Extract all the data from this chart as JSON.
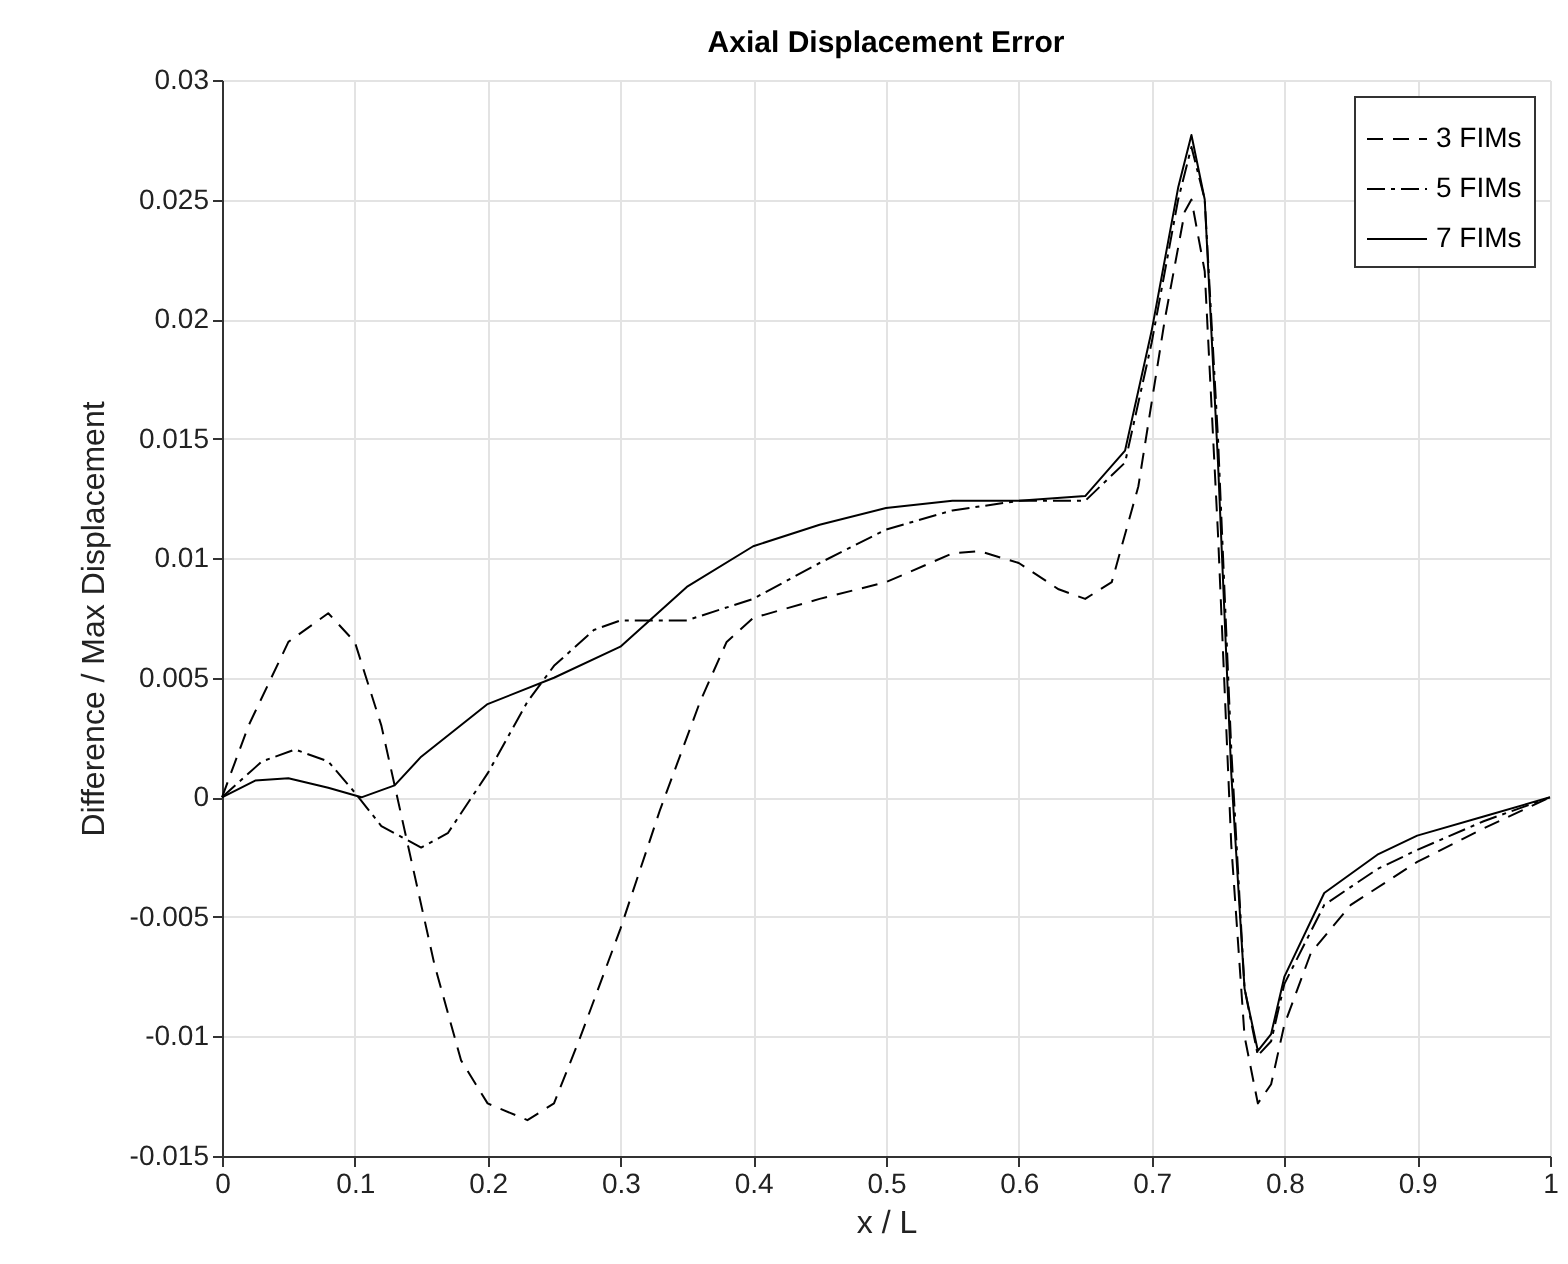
{
  "chart_data": {
    "type": "line",
    "title": "Axial Displacement Error",
    "xlabel": "x / L",
    "ylabel": "Difference / Max Displacement",
    "xlim": [
      0,
      1
    ],
    "xticks": [
      0,
      0.1,
      0.2,
      0.3,
      0.4,
      0.5,
      0.6,
      0.7,
      0.8,
      0.9,
      1
    ],
    "ylim": [
      -0.015,
      0.03
    ],
    "yticks": [
      -0.015,
      -0.01,
      -0.005,
      0,
      0.005,
      0.01,
      0.015,
      0.02,
      0.025,
      0.03
    ],
    "grid": true,
    "legend": "top right",
    "marker": "none",
    "series": [
      {
        "name": "3 FIMs",
        "color": "#000000",
        "line_style": "dashed",
        "x": [
          0,
          0.02,
          0.05,
          0.08,
          0.1,
          0.12,
          0.14,
          0.16,
          0.18,
          0.2,
          0.23,
          0.25,
          0.27,
          0.3,
          0.33,
          0.36,
          0.38,
          0.4,
          0.45,
          0.5,
          0.55,
          0.57,
          0.6,
          0.63,
          0.65,
          0.67,
          0.69,
          0.71,
          0.725,
          0.73,
          0.74,
          0.75,
          0.76,
          0.77,
          0.78,
          0.79,
          0.8,
          0.82,
          0.85,
          0.9,
          0.95,
          1
        ],
        "values": [
          0,
          0.003,
          0.0065,
          0.0077,
          0.0065,
          0.003,
          -0.002,
          -0.007,
          -0.011,
          -0.0128,
          -0.0135,
          -0.0128,
          -0.01,
          -0.0055,
          -0.0005,
          0.004,
          0.0065,
          0.0075,
          0.0083,
          0.009,
          0.0102,
          0.0103,
          0.0098,
          0.0087,
          0.0083,
          0.009,
          0.013,
          0.02,
          0.0245,
          0.025,
          0.022,
          0.011,
          -0.002,
          -0.01,
          -0.0128,
          -0.012,
          -0.0095,
          -0.0065,
          -0.0045,
          -0.0027,
          -0.0013,
          0
        ]
      },
      {
        "name": "5 FIMs",
        "color": "#000000",
        "line_style": "dashdot",
        "x": [
          0,
          0.03,
          0.055,
          0.08,
          0.1,
          0.12,
          0.15,
          0.17,
          0.2,
          0.23,
          0.25,
          0.28,
          0.3,
          0.35,
          0.4,
          0.45,
          0.5,
          0.55,
          0.6,
          0.65,
          0.68,
          0.7,
          0.72,
          0.73,
          0.74,
          0.75,
          0.76,
          0.77,
          0.78,
          0.79,
          0.8,
          0.83,
          0.87,
          0.9,
          0.95,
          1
        ],
        "values": [
          0,
          0.0015,
          0.002,
          0.0015,
          0.0002,
          -0.0012,
          -0.0021,
          -0.0015,
          0.001,
          0.004,
          0.0055,
          0.007,
          0.0074,
          0.0074,
          0.0083,
          0.0098,
          0.0112,
          0.012,
          0.0124,
          0.0124,
          0.014,
          0.019,
          0.025,
          0.0272,
          0.025,
          0.015,
          0.002,
          -0.008,
          -0.0108,
          -0.0102,
          -0.0078,
          -0.0045,
          -0.003,
          -0.0022,
          -0.001,
          0
        ]
      },
      {
        "name": "7 FIMs",
        "color": "#000000",
        "line_style": "solid",
        "x": [
          0,
          0.025,
          0.05,
          0.08,
          0.105,
          0.13,
          0.15,
          0.2,
          0.25,
          0.3,
          0.35,
          0.4,
          0.45,
          0.5,
          0.55,
          0.6,
          0.65,
          0.68,
          0.7,
          0.72,
          0.73,
          0.74,
          0.75,
          0.76,
          0.77,
          0.78,
          0.79,
          0.8,
          0.83,
          0.87,
          0.9,
          0.95,
          1
        ],
        "values": [
          0,
          0.0007,
          0.0008,
          0.0004,
          0,
          0.0005,
          0.0017,
          0.0039,
          0.005,
          0.0063,
          0.0088,
          0.0105,
          0.0114,
          0.0121,
          0.0124,
          0.0124,
          0.0126,
          0.0145,
          0.0195,
          0.0255,
          0.0277,
          0.025,
          0.014,
          0.001,
          -0.008,
          -0.0106,
          -0.0099,
          -0.0075,
          -0.004,
          -0.0024,
          -0.0016,
          -0.0008,
          0
        ]
      }
    ]
  }
}
